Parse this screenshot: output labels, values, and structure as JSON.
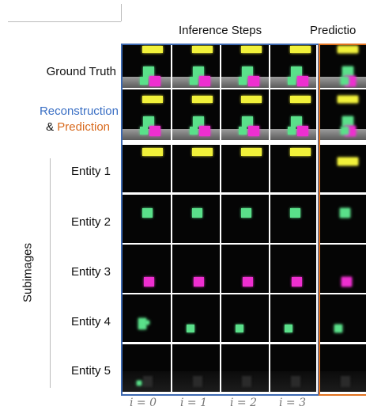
{
  "header": {
    "inference_steps": "Inference Steps",
    "prediction": "Predictio"
  },
  "rows": {
    "ground_truth": "Ground Truth",
    "reconstruction": "Reconstruction",
    "amp": "& ",
    "prediction": "Prediction",
    "subimages": "Subimages",
    "entity_1": "Entity 1",
    "entity_2": "Entity 2",
    "entity_3": "Entity 3",
    "entity_4": "Entity 4",
    "entity_5": "Entity 5"
  },
  "steps": [
    "i = 0",
    "i = 1",
    "i = 2",
    "i = 3"
  ],
  "colors": {
    "reconstruction": "#3a6fc4",
    "prediction": "#d8691c",
    "yellow_block": "#f1f13a",
    "green_block": "#5ae08a",
    "pink_block": "#ee2fd0"
  }
}
